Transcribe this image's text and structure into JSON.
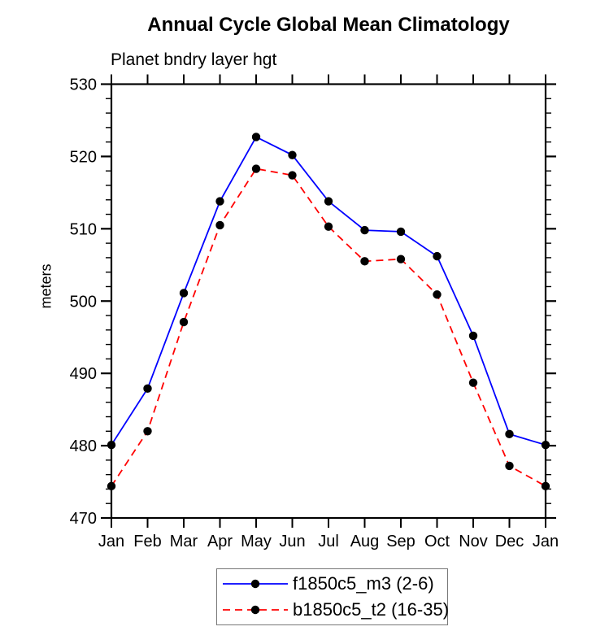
{
  "chart_data": {
    "type": "line",
    "title": "Annual Cycle Global Mean Climatology",
    "subtitle": "Planet bndry layer hgt",
    "ylabel": "meters",
    "xlabel": "",
    "categories": [
      "Jan",
      "Feb",
      "Mar",
      "Apr",
      "May",
      "Jun",
      "Jul",
      "Aug",
      "Sep",
      "Oct",
      "Nov",
      "Dec",
      "Jan"
    ],
    "ylim": [
      470,
      530
    ],
    "y_major_step": 10,
    "y_minor_step": 2,
    "grid": false,
    "legend_position": "bottom-center",
    "axis_color": "#000000",
    "marker": {
      "shape": "circle",
      "color": "#000000"
    },
    "series": [
      {
        "name": "f1850c5_m3 (2-6)",
        "color": "#0000ff",
        "line_style": "solid",
        "dash": "none",
        "values": [
          480.1,
          487.9,
          501.1,
          513.8,
          522.7,
          520.2,
          513.8,
          509.8,
          509.6,
          506.2,
          495.2,
          481.6,
          480.1
        ]
      },
      {
        "name": "b1850c5_t2 (16-35)",
        "color": "#ff0000",
        "line_style": "dashed",
        "dash": "9,6",
        "values": [
          474.4,
          482.0,
          497.1,
          510.5,
          518.3,
          517.4,
          510.3,
          505.5,
          505.8,
          500.9,
          488.7,
          477.2,
          474.4
        ]
      }
    ]
  }
}
